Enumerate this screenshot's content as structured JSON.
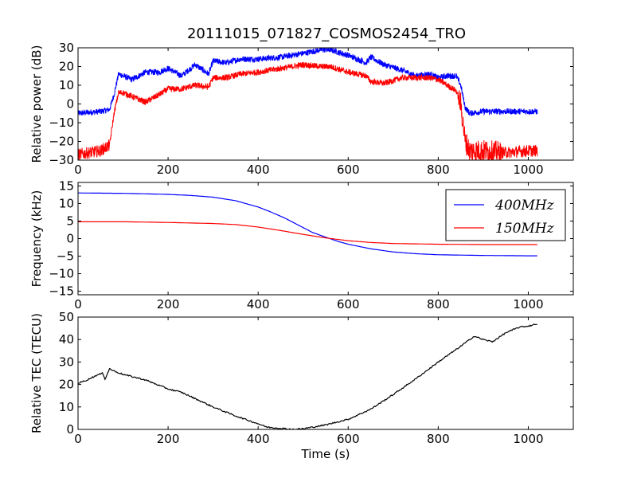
{
  "figure": {
    "title": "20111015_071827_COSMOS2454_TRO"
  },
  "chart_data": [
    {
      "type": "line",
      "title": "20111015_071827_COSMOS2454_TRO",
      "xlabel": "",
      "ylabel": "Relative power (dB)",
      "xlim": [
        0,
        1100
      ],
      "ylim": [
        -30,
        30
      ],
      "xticks": [
        0,
        200,
        400,
        600,
        800,
        1000
      ],
      "yticks": [
        -30,
        -20,
        -10,
        0,
        10,
        20,
        30
      ],
      "grid": false,
      "noisy": true,
      "series": [
        {
          "color": "#0000ff",
          "x": [
            0,
            50,
            70,
            80,
            90,
            100,
            120,
            150,
            180,
            200,
            230,
            260,
            290,
            300,
            330,
            360,
            400,
            450,
            500,
            540,
            560,
            600,
            640,
            650,
            680,
            720,
            750,
            780,
            800,
            820,
            840,
            850,
            860,
            870,
            900,
            950,
            1000,
            1020
          ],
          "y": [
            -5,
            -4,
            -3,
            5,
            16,
            15,
            13,
            17,
            17,
            19,
            15,
            21,
            16,
            23,
            22,
            24,
            24,
            25,
            27,
            29,
            29,
            26,
            22,
            25,
            21,
            18,
            15,
            16,
            14,
            15,
            15,
            10,
            -2,
            -5,
            -4,
            -4,
            -4,
            -4
          ]
        },
        {
          "color": "#ff0000",
          "x": [
            0,
            50,
            70,
            80,
            90,
            100,
            130,
            150,
            180,
            200,
            230,
            260,
            290,
            300,
            330,
            360,
            400,
            450,
            500,
            540,
            560,
            600,
            640,
            650,
            680,
            720,
            750,
            780,
            800,
            820,
            840,
            850,
            860,
            870,
            900,
            950,
            1000,
            1020
          ],
          "y": [
            -27,
            -25,
            -22,
            -5,
            6,
            6,
            3,
            1,
            5,
            8,
            8,
            10,
            9,
            14,
            14,
            16,
            17,
            19,
            21,
            20,
            20,
            17,
            15,
            12,
            11,
            14,
            14,
            14,
            13,
            10,
            7,
            0,
            -20,
            -25,
            -25,
            -26,
            -25,
            -25
          ]
        }
      ]
    },
    {
      "type": "line",
      "title": "",
      "xlabel": "",
      "ylabel": "Frequency (kHz)",
      "xlim": [
        0,
        1100
      ],
      "ylim": [
        -16,
        16
      ],
      "xticks": [
        0,
        200,
        400,
        600,
        800,
        1000
      ],
      "yticks": [
        -15,
        -10,
        -5,
        0,
        5,
        10,
        15
      ],
      "grid": false,
      "legend": "upper-right",
      "series": [
        {
          "name": "400MHz",
          "color": "#0000ff",
          "x": [
            0,
            100,
            200,
            250,
            300,
            350,
            400,
            430,
            460,
            490,
            520,
            550,
            580,
            600,
            650,
            700,
            750,
            800,
            850,
            900,
            1000,
            1020
          ],
          "y": [
            13,
            12.9,
            12.6,
            12.3,
            11.8,
            10.8,
            9,
            7.5,
            5.8,
            3.8,
            1.8,
            0.4,
            -0.9,
            -1.6,
            -2.9,
            -3.8,
            -4.3,
            -4.6,
            -4.7,
            -4.8,
            -4.9,
            -4.9
          ]
        },
        {
          "name": "150MHz",
          "color": "#ff0000",
          "x": [
            0,
            100,
            200,
            300,
            350,
            400,
            450,
            500,
            550,
            600,
            650,
            700,
            800,
            900,
            1000,
            1020
          ],
          "y": [
            4.8,
            4.8,
            4.6,
            4.3,
            4.0,
            3.3,
            2.3,
            1.2,
            0.2,
            -0.6,
            -1.1,
            -1.4,
            -1.6,
            -1.7,
            -1.7,
            -1.7
          ]
        }
      ]
    },
    {
      "type": "line",
      "title": "",
      "xlabel": "Time (s)",
      "ylabel": "Relative TEC (TECU)",
      "xlim": [
        0,
        1100
      ],
      "ylim": [
        0,
        50
      ],
      "xticks": [
        0,
        200,
        400,
        600,
        800,
        1000
      ],
      "yticks": [
        0,
        10,
        20,
        30,
        40,
        50
      ],
      "grid": false,
      "series": [
        {
          "color": "#000000",
          "x": [
            0,
            20,
            40,
            55,
            60,
            70,
            80,
            100,
            150,
            200,
            230,
            300,
            350,
            400,
            420,
            450,
            480,
            500,
            550,
            600,
            650,
            700,
            750,
            800,
            850,
            870,
            880,
            900,
            920,
            950,
            980,
            1000,
            1020
          ],
          "y": [
            20.5,
            22,
            24,
            25,
            22.5,
            27,
            26,
            24.5,
            22,
            18,
            16.5,
            10,
            6,
            2.5,
            1,
            0.5,
            0,
            0.3,
            2,
            4.5,
            9,
            15.5,
            22.5,
            30,
            37,
            40,
            41.5,
            40,
            39,
            43,
            45.5,
            46,
            47
          ]
        }
      ]
    }
  ]
}
